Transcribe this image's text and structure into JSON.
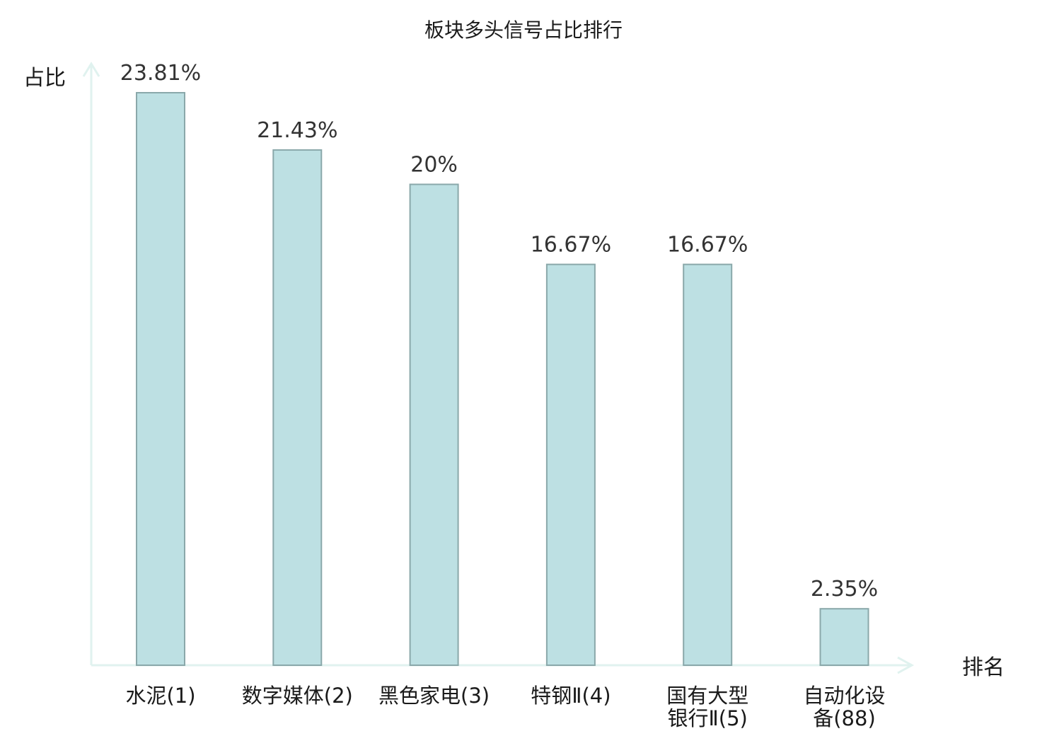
{
  "chart_data": {
    "type": "bar",
    "title": "板块多头信号占比排行",
    "xlabel": "排名",
    "ylabel": "占比",
    "categories": [
      [
        "水泥(1)"
      ],
      [
        "数字媒体(2)"
      ],
      [
        "黑色家电(3)"
      ],
      [
        "特钢Ⅱ(4)"
      ],
      [
        "国有大型",
        "银行Ⅱ(5)"
      ],
      [
        "自动化设",
        "备(88)"
      ]
    ],
    "values": [
      23.81,
      21.43,
      20,
      16.67,
      16.67,
      2.35
    ],
    "value_labels": [
      "23.81%",
      "21.43%",
      "20%",
      "16.67%",
      "16.67%",
      "2.35%"
    ],
    "highlight_index": 5,
    "ylim": [
      0,
      23.81
    ],
    "grid": false,
    "legend": "none",
    "colors": {
      "bar_fill": "#bde0e3",
      "bar_stroke": "#8aa8aa",
      "axis": "#e0f2ef",
      "highlight_label": "#e31a1c",
      "label": "#1a1a1a",
      "value_label": "#333333"
    }
  }
}
